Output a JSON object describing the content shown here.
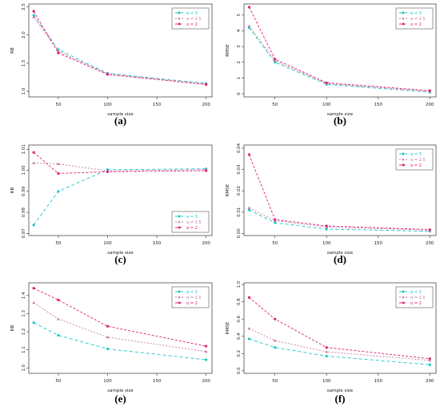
{
  "chart_data": [
    {
      "panel": "(a)",
      "type": "line",
      "xlabel": "sample size",
      "ylabel": "RB",
      "xlim": [
        20,
        206
      ],
      "ylim": [
        0.9,
        2.55
      ],
      "xticks": [
        50,
        100,
        150,
        200
      ],
      "xtick_labels": [
        "50",
        "100",
        "150",
        "200"
      ],
      "yticks": [
        1.0,
        1.5,
        2.0,
        2.5
      ],
      "ytick_labels": [
        "1.0",
        "1.5",
        "2.0",
        "2.5"
      ],
      "x": [
        25,
        50,
        100,
        200
      ],
      "legend_position": "top-right",
      "series": [
        {
          "name": "α = 3",
          "values": [
            2.35,
            1.74,
            1.32,
            1.14
          ]
        },
        {
          "name": "α = 2.5",
          "values": [
            2.32,
            1.71,
            1.31,
            1.13
          ]
        },
        {
          "name": "α = 2",
          "values": [
            2.42,
            1.68,
            1.3,
            1.12
          ]
        }
      ]
    },
    {
      "panel": "(b)",
      "type": "line",
      "xlabel": "sample size",
      "ylabel": "RMSE",
      "xlim": [
        20,
        206
      ],
      "ylim": [
        -0.2,
        5.7
      ],
      "xticks": [
        50,
        100,
        150,
        200
      ],
      "xtick_labels": [
        "50",
        "100",
        "150",
        "200"
      ],
      "yticks": [
        0,
        1,
        2,
        3,
        4,
        5
      ],
      "ytick_labels": [
        "0",
        "1",
        "2",
        "3",
        "4",
        "5"
      ],
      "x": [
        25,
        50,
        100,
        200
      ],
      "legend_position": "top-right",
      "series": [
        {
          "name": "α = 3",
          "values": [
            4.2,
            2.0,
            0.6,
            0.1
          ]
        },
        {
          "name": "α = 2.5",
          "values": [
            4.3,
            2.1,
            0.65,
            0.15
          ]
        },
        {
          "name": "α = 2",
          "values": [
            5.5,
            2.2,
            0.7,
            0.2
          ]
        }
      ]
    },
    {
      "panel": "(c)",
      "type": "line",
      "xlabel": "sample size",
      "ylabel": "RB",
      "xlim": [
        20,
        206
      ],
      "ylim": [
        0.969,
        1.012
      ],
      "xticks": [
        50,
        100,
        150,
        200
      ],
      "xtick_labels": [
        "50",
        "100",
        "150",
        "200"
      ],
      "yticks": [
        0.97,
        0.98,
        0.99,
        1.0,
        1.01
      ],
      "ytick_labels": [
        "0.97",
        "0.98",
        "0.99",
        "1.00",
        "1.01"
      ],
      "x": [
        25,
        50,
        100,
        200
      ],
      "legend_position": "bottom-right",
      "series": [
        {
          "name": "α = 3",
          "values": [
            0.974,
            0.99,
            1.0003,
            1.0007
          ]
        },
        {
          "name": "α = 2.5",
          "values": [
            1.0035,
            1.003,
            0.9997,
            1.0003
          ]
        },
        {
          "name": "α = 2",
          "values": [
            1.0085,
            0.9985,
            0.9993,
            0.9998
          ]
        }
      ]
    },
    {
      "panel": "(d)",
      "type": "line",
      "xlabel": "sample size",
      "ylabel": "RMSE",
      "xlim": [
        20,
        206
      ],
      "ylim": [
        -0.001,
        0.0415
      ],
      "xticks": [
        50,
        100,
        150,
        200
      ],
      "xtick_labels": [
        "50",
        "100",
        "150",
        "200"
      ],
      "yticks": [
        0.0,
        0.01,
        0.02,
        0.03,
        0.04
      ],
      "ytick_labels": [
        "0.00",
        "0.01",
        "0.02",
        "0.03",
        "0.04"
      ],
      "x": [
        25,
        50,
        100,
        200
      ],
      "legend_position": "top-right",
      "series": [
        {
          "name": "α = 3",
          "values": [
            0.011,
            0.005,
            0.002,
            0.001
          ]
        },
        {
          "name": "α = 2.5",
          "values": [
            0.012,
            0.006,
            0.003,
            0.0015
          ]
        },
        {
          "name": "α = 2",
          "values": [
            0.037,
            0.0065,
            0.0035,
            0.0018
          ]
        }
      ]
    },
    {
      "panel": "(e)",
      "type": "line",
      "xlabel": "sample size",
      "ylabel": "RB",
      "xlim": [
        20,
        206
      ],
      "ylim": [
        0.97,
        1.47
      ],
      "xticks": [
        50,
        100,
        150,
        200
      ],
      "xtick_labels": [
        "50",
        "100",
        "150",
        "200"
      ],
      "yticks": [
        1.0,
        1.1,
        1.2,
        1.3,
        1.4
      ],
      "ytick_labels": [
        "1.0",
        "1.1",
        "1.2",
        "1.3",
        "1.4"
      ],
      "x": [
        25,
        50,
        100,
        200
      ],
      "legend_position": "top-right",
      "series": [
        {
          "name": "α = 3",
          "values": [
            1.25,
            1.18,
            1.105,
            1.045
          ]
        },
        {
          "name": "α = 2.5",
          "values": [
            1.36,
            1.27,
            1.17,
            1.09
          ]
        },
        {
          "name": "α = 2",
          "values": [
            1.44,
            1.375,
            1.23,
            1.12
          ]
        }
      ]
    },
    {
      "panel": "(f)",
      "type": "line",
      "xlabel": "sample size",
      "ylabel": "RMSE",
      "xlim": [
        20,
        206
      ],
      "ylim": [
        -0.03,
        1.02
      ],
      "xticks": [
        50,
        100,
        150,
        200
      ],
      "xtick_labels": [
        "50",
        "100",
        "150",
        "200"
      ],
      "yticks": [
        0.0,
        0.2,
        0.4,
        0.6,
        0.8,
        1.0
      ],
      "ytick_labels": [
        "0.0",
        "0.2",
        "0.4",
        "0.6",
        "0.8",
        "1.0"
      ],
      "x": [
        25,
        50,
        100,
        200
      ],
      "legend_position": "top-right",
      "series": [
        {
          "name": "α = 3",
          "values": [
            0.37,
            0.27,
            0.17,
            0.07
          ]
        },
        {
          "name": "α = 2.5",
          "values": [
            0.49,
            0.35,
            0.22,
            0.12
          ]
        },
        {
          "name": "α = 2",
          "values": [
            0.85,
            0.6,
            0.27,
            0.14
          ]
        }
      ]
    }
  ],
  "style": {
    "series_colors": [
      "#19c8c8",
      "#c77aa6",
      "#e0206e"
    ],
    "series_markers": [
      "circle",
      "triangle",
      "circle"
    ],
    "series_dash": [
      "4,3",
      "2,2",
      "3,2"
    ]
  }
}
